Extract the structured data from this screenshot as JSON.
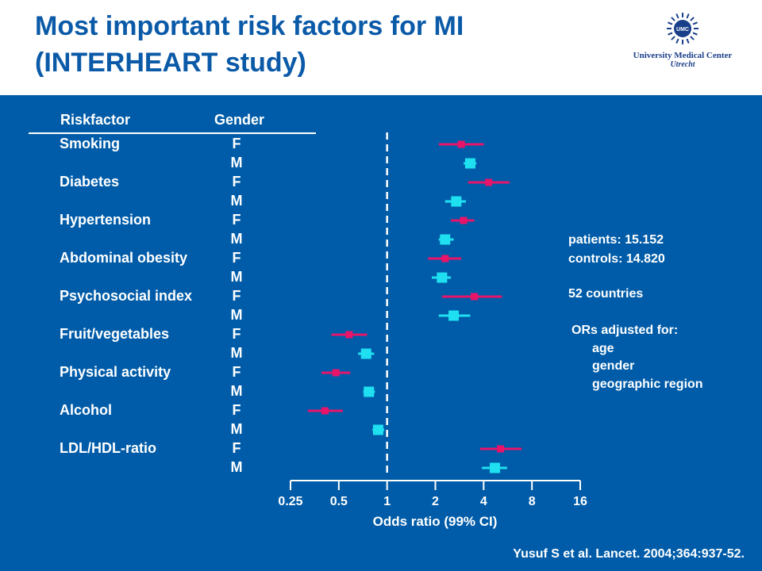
{
  "title_line1": "Most important risk factors for MI",
  "title_line2": "(INTERHEART study)",
  "logo": {
    "line1": "University Medical Center",
    "line2": "Utrecht",
    "mark": "UMC"
  },
  "columns": {
    "riskfactor": "Riskfactor",
    "gender": "Gender"
  },
  "info": {
    "patients": "patients: 15.152",
    "controls": "controls: 14.820",
    "countries": "52 countries",
    "adjusted_title": "ORs adjusted for:",
    "adjusted_items": [
      "age",
      "gender",
      "geographic region"
    ]
  },
  "citation": "Yusuf S et al. Lancet. 2004;364:937-52.",
  "colors": {
    "female": "#e8146a",
    "male": "#1ee0f0",
    "panel": "#005ca8",
    "title": "#0a5aa8"
  },
  "chart_data": {
    "type": "forest",
    "xlabel": "Odds ratio (99% CI)",
    "xscale": "log2",
    "xlim": [
      0.25,
      16
    ],
    "ticks": [
      0.25,
      0.5,
      1,
      2,
      4,
      8,
      16
    ],
    "tick_labels": [
      "0.25",
      "0.5",
      "1",
      "2",
      "4",
      "8",
      "16"
    ],
    "reference_line": 1,
    "rows": [
      {
        "factor": "Smoking",
        "gender": "F",
        "or": 2.9,
        "lo": 2.1,
        "hi": 4.0
      },
      {
        "factor": "",
        "gender": "M",
        "or": 3.3,
        "lo": 3.0,
        "hi": 3.6
      },
      {
        "factor": "Diabetes",
        "gender": "F",
        "or": 4.3,
        "lo": 3.2,
        "hi": 5.8
      },
      {
        "factor": "",
        "gender": "M",
        "or": 2.7,
        "lo": 2.3,
        "hi": 3.1
      },
      {
        "factor": "Hypertension",
        "gender": "F",
        "or": 3.0,
        "lo": 2.5,
        "hi": 3.5
      },
      {
        "factor": "",
        "gender": "M",
        "or": 2.3,
        "lo": 2.1,
        "hi": 2.6
      },
      {
        "factor": "Abdominal obesity",
        "gender": "F",
        "or": 2.3,
        "lo": 1.8,
        "hi": 2.9
      },
      {
        "factor": "",
        "gender": "M",
        "or": 2.2,
        "lo": 1.9,
        "hi": 2.5
      },
      {
        "factor": "Psychosocial index",
        "gender": "F",
        "or": 3.5,
        "lo": 2.2,
        "hi": 5.2
      },
      {
        "factor": "",
        "gender": "M",
        "or": 2.6,
        "lo": 2.1,
        "hi": 3.3
      },
      {
        "factor": "Fruit/vegetables",
        "gender": "F",
        "or": 0.58,
        "lo": 0.45,
        "hi": 0.75
      },
      {
        "factor": "",
        "gender": "M",
        "or": 0.74,
        "lo": 0.66,
        "hi": 0.83
      },
      {
        "factor": "Physical activity",
        "gender": "F",
        "or": 0.48,
        "lo": 0.39,
        "hi": 0.59
      },
      {
        "factor": "",
        "gender": "M",
        "or": 0.77,
        "lo": 0.71,
        "hi": 0.84
      },
      {
        "factor": "Alcohol",
        "gender": "F",
        "or": 0.41,
        "lo": 0.32,
        "hi": 0.53
      },
      {
        "factor": "",
        "gender": "M",
        "or": 0.88,
        "lo": 0.81,
        "hi": 0.96
      },
      {
        "factor": "LDL/HDL-ratio",
        "gender": "F",
        "or": 5.1,
        "lo": 3.8,
        "hi": 6.9
      },
      {
        "factor": "",
        "gender": "M",
        "or": 4.7,
        "lo": 3.9,
        "hi": 5.6
      }
    ]
  }
}
